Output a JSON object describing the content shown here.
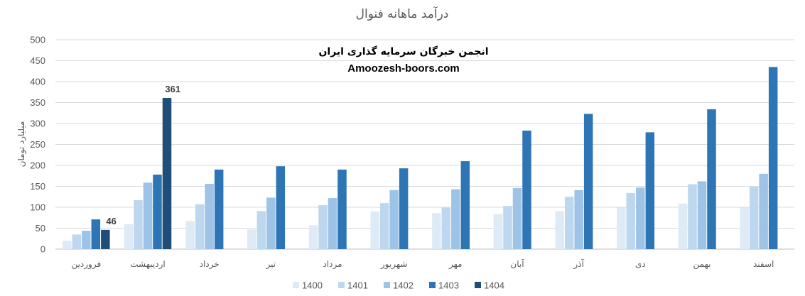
{
  "chart_data": {
    "type": "bar",
    "title": "درآمد ماهانه فنوال",
    "ylabel": "میلیارد تومان",
    "ylim": [
      0,
      500
    ],
    "yticks": [
      0,
      50,
      100,
      150,
      200,
      250,
      300,
      350,
      400,
      450,
      500
    ],
    "grid": true,
    "legend_position": "bottom",
    "categories": [
      "فروردین",
      "اردیبهشت",
      "خرداد",
      "تیر",
      "مرداد",
      "شهریور",
      "مهر",
      "آبان",
      "آذر",
      "دی",
      "بهمن",
      "اسفند"
    ],
    "series": [
      {
        "name": "1400",
        "color": "#deebf7",
        "values": [
          20,
          60,
          67,
          47,
          57,
          90,
          86,
          84,
          91,
          99,
          109,
          99
        ]
      },
      {
        "name": "1401",
        "color": "#bdd7ee",
        "values": [
          35,
          117,
          107,
          91,
          105,
          110,
          99,
          103,
          125,
          134,
          155,
          149
        ]
      },
      {
        "name": "1402",
        "color": "#9dc3e6",
        "values": [
          44,
          159,
          156,
          123,
          122,
          141,
          143,
          146,
          141,
          147,
          162,
          180
        ]
      },
      {
        "name": "1403",
        "color": "#2e75b6",
        "values": [
          71,
          178,
          190,
          198,
          190,
          193,
          210,
          283,
          323,
          279,
          334,
          435
        ]
      },
      {
        "name": "1404",
        "color": "#1f4e79",
        "values": [
          46,
          361,
          null,
          null,
          null,
          null,
          null,
          null,
          null,
          null,
          null,
          null
        ]
      }
    ],
    "data_labels": [
      {
        "series": "1404",
        "category": "فروردین",
        "text": "46"
      },
      {
        "series": "1404",
        "category": "اردیبهشت",
        "text": "361"
      }
    ],
    "watermark": {
      "line1": "انجمن خبرگان سرمایه گذاری ایران",
      "line2": "Amoozesh-boors.com"
    }
  }
}
